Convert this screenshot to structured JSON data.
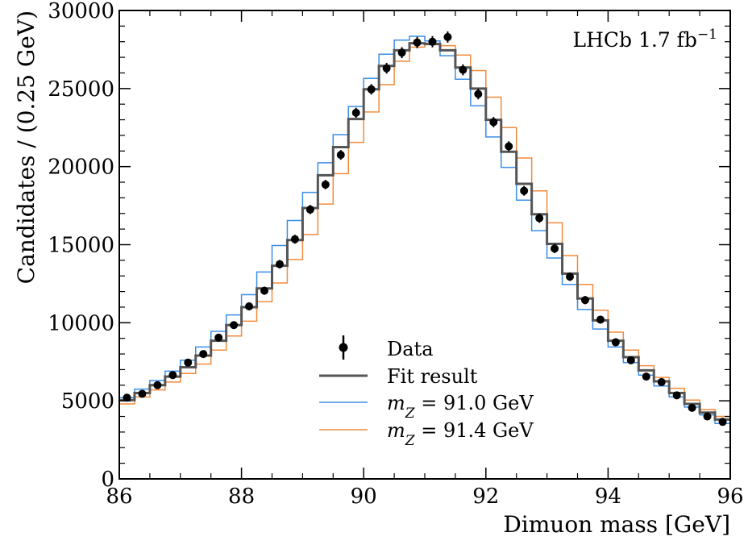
{
  "chart_data": {
    "type": "histogram",
    "xlabel": "Dimuon mass [GeV]",
    "ylabel": "Candidates / (0.25 GeV)",
    "xlim": [
      86,
      96
    ],
    "ylim": [
      0,
      30000
    ],
    "xticks": [
      86,
      88,
      90,
      92,
      94,
      96
    ],
    "yticks": [
      0,
      5000,
      10000,
      15000,
      20000,
      25000,
      30000
    ],
    "bin_width": 0.25,
    "bin_edges_start": 86,
    "annotation": {
      "text": "LHCb 1.7 fb",
      "superscript": "−1"
    },
    "legend": {
      "placement": "center-bottom",
      "entries": [
        {
          "key": "data",
          "label": "Data"
        },
        {
          "key": "fit",
          "label": "Fit result"
        },
        {
          "key": "m910",
          "label_var": "m",
          "label_sub": "Z",
          "label_rest": " = 91.0 GeV"
        },
        {
          "key": "m914",
          "label_var": "m",
          "label_sub": "Z",
          "label_rest": " = 91.4 GeV"
        }
      ]
    },
    "colors": {
      "data": "#000000",
      "fit": "#555555",
      "m910": "#3a8ee6",
      "m914": "#f28b3c"
    },
    "series": [
      {
        "key": "data",
        "type": "errorbar",
        "x": [
          86.125,
          86.375,
          86.625,
          86.875,
          87.125,
          87.375,
          87.625,
          87.875,
          88.125,
          88.375,
          88.625,
          88.875,
          89.125,
          89.375,
          89.625,
          89.875,
          90.125,
          90.375,
          90.625,
          90.875,
          91.125,
          91.375,
          91.625,
          91.875,
          92.125,
          92.375,
          92.625,
          92.875,
          93.125,
          93.375,
          93.625,
          93.875,
          94.125,
          94.375,
          94.625,
          94.875,
          95.125,
          95.375,
          95.625,
          95.875
        ],
        "values": [
          5200,
          5450,
          6000,
          6650,
          7450,
          8000,
          9050,
          9850,
          11050,
          12050,
          13750,
          15350,
          17250,
          18850,
          20750,
          23450,
          24950,
          26300,
          27300,
          27950,
          28000,
          28300,
          26200,
          24650,
          22850,
          21300,
          18450,
          16700,
          14750,
          12950,
          11450,
          10200,
          8750,
          7600,
          6550,
          6200,
          5350,
          4550,
          4000,
          3650
        ],
        "errors": [
          180,
          185,
          190,
          200,
          210,
          220,
          230,
          240,
          250,
          260,
          270,
          280,
          290,
          300,
          310,
          320,
          330,
          340,
          350,
          360,
          360,
          360,
          350,
          340,
          330,
          320,
          310,
          300,
          290,
          270,
          260,
          250,
          240,
          230,
          220,
          210,
          200,
          190,
          180,
          180
        ]
      },
      {
        "key": "fit",
        "type": "step",
        "values": [
          5050,
          5500,
          6000,
          6550,
          7150,
          7900,
          8850,
          9850,
          11000,
          12200,
          13650,
          15300,
          17350,
          19450,
          21250,
          23050,
          24950,
          26450,
          27450,
          27900,
          27850,
          27450,
          26350,
          25000,
          23000,
          20950,
          18900,
          16950,
          15050,
          13150,
          11550,
          10150,
          8850,
          7800,
          6950,
          6250,
          5500,
          4800,
          4250,
          3800
        ]
      },
      {
        "key": "m910",
        "type": "step",
        "values": [
          5200,
          5750,
          6300,
          6900,
          7600,
          8450,
          9450,
          10500,
          11800,
          13250,
          14950,
          16550,
          18350,
          20250,
          22050,
          23850,
          25650,
          27200,
          28100,
          28350,
          28050,
          27100,
          25600,
          23900,
          21900,
          19950,
          17850,
          15900,
          14150,
          12450,
          10850,
          9600,
          8450,
          7450,
          6650,
          5950,
          5250,
          4600,
          4100,
          3550
        ]
      },
      {
        "key": "m914",
        "type": "step",
        "values": [
          4800,
          5250,
          5700,
          6200,
          6750,
          7350,
          8250,
          9150,
          10100,
          11350,
          12550,
          14050,
          15650,
          17600,
          19550,
          21550,
          23500,
          25250,
          26750,
          27650,
          27900,
          27750,
          27150,
          26150,
          24450,
          22500,
          20550,
          18450,
          16400,
          14300,
          12450,
          10800,
          9400,
          8250,
          7250,
          6500,
          5800,
          5050,
          4450,
          4000
        ]
      }
    ]
  }
}
